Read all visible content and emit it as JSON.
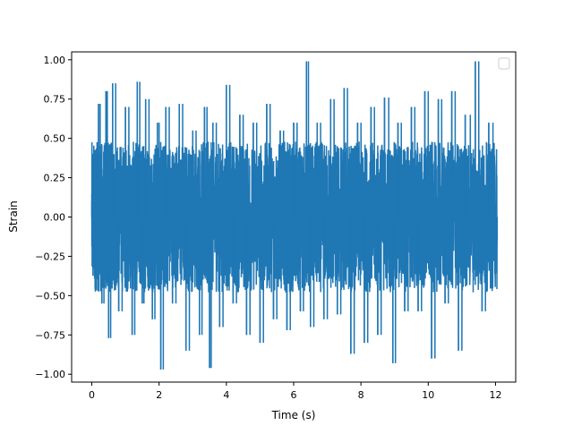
{
  "chart_data": {
    "type": "line",
    "xlabel": "Time (s)",
    "ylabel": "Strain",
    "xlim": [
      -0.6,
      12.6
    ],
    "ylim": [
      -1.05,
      1.05
    ],
    "x_ticks": [
      0,
      2,
      4,
      6,
      8,
      10,
      12
    ],
    "x_tick_labels": [
      "0",
      "2",
      "4",
      "6",
      "8",
      "10",
      "12"
    ],
    "y_ticks": [
      1.0,
      0.75,
      0.5,
      0.25,
      0.0,
      -0.25,
      -0.5,
      -0.75,
      -1.0
    ],
    "y_tick_labels": [
      "1.00",
      "0.75",
      "0.50",
      "0.25",
      "0.00",
      "−0.25",
      "−0.50",
      "−0.75",
      "−1.00"
    ],
    "grid": false,
    "legend": {
      "placement": "top-right",
      "entries": []
    },
    "series": [
      {
        "color": "#1f77b4",
        "x": [
          0,
          0.1,
          0.2,
          0.3,
          0.42,
          0.5,
          0.62,
          0.8,
          1.0,
          1.2,
          1.35,
          1.5,
          1.6,
          1.8,
          1.95,
          2.05,
          2.2,
          2.4,
          2.6,
          2.8,
          3.0,
          3.2,
          3.35,
          3.5,
          3.6,
          3.8,
          4.0,
          4.2,
          4.4,
          4.6,
          4.8,
          5.0,
          5.2,
          5.4,
          5.6,
          5.8,
          6.0,
          6.2,
          6.38,
          6.5,
          6.7,
          6.9,
          7.1,
          7.3,
          7.5,
          7.7,
          7.9,
          8.1,
          8.3,
          8.5,
          8.7,
          8.95,
          9.1,
          9.3,
          9.5,
          9.7,
          9.9,
          10.1,
          10.3,
          10.5,
          10.7,
          10.9,
          11.1,
          11.4,
          11.6,
          11.8,
          12.05
        ],
        "y": [
          0.1,
          -0.35,
          0.72,
          -0.55,
          0.8,
          -0.77,
          0.85,
          -0.6,
          0.7,
          -0.75,
          0.86,
          -0.55,
          0.75,
          -0.65,
          0.6,
          -0.97,
          0.7,
          -0.55,
          0.72,
          -0.85,
          0.55,
          -0.75,
          0.7,
          -0.96,
          0.6,
          -0.7,
          0.84,
          -0.55,
          0.65,
          -0.75,
          0.6,
          -0.8,
          0.72,
          -0.65,
          0.55,
          -0.72,
          0.6,
          -0.6,
          0.99,
          -0.7,
          0.6,
          -0.65,
          0.75,
          -0.62,
          0.82,
          -0.87,
          0.6,
          -0.8,
          0.7,
          -0.75,
          0.76,
          -0.93,
          0.6,
          -0.6,
          0.7,
          -0.6,
          0.8,
          -0.9,
          0.75,
          -0.55,
          0.8,
          -0.85,
          0.65,
          0.99,
          -0.6,
          0.6,
          -0.15
        ]
      }
    ]
  }
}
